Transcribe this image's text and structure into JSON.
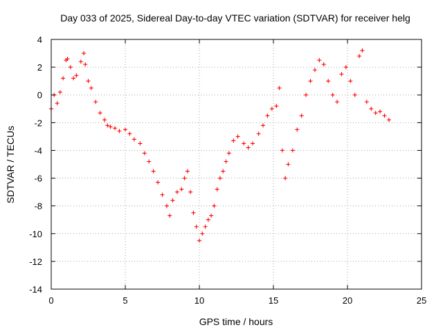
{
  "chart_data": {
    "type": "scatter",
    "title": "Day 033 of 2025, Sidereal Day-to-day VTEC variation (SDTVAR) for receiver helg",
    "xlabel": "GPS time / hours",
    "ylabel": "SDTVAR / TECUs",
    "xlim": [
      0,
      25
    ],
    "ylim": [
      -14,
      4
    ],
    "xticks": [
      0,
      5,
      10,
      15,
      20,
      25
    ],
    "yticks": [
      -14,
      -12,
      -10,
      -8,
      -6,
      -4,
      -2,
      0,
      2,
      4
    ],
    "grid": true,
    "marker": "+",
    "series_color": "#ff0000",
    "series": [
      {
        "name": "SDTVAR",
        "x": [
          0.0,
          0.2,
          0.4,
          0.6,
          0.8,
          1.0,
          1.1,
          1.3,
          1.5,
          1.7,
          2.0,
          2.2,
          2.3,
          2.5,
          2.7,
          3.0,
          3.3,
          3.6,
          3.8,
          4.0,
          4.3,
          4.6,
          5.0,
          5.3,
          5.6,
          6.0,
          6.3,
          6.6,
          6.9,
          7.2,
          7.5,
          7.8,
          8.0,
          8.2,
          8.5,
          8.8,
          9.0,
          9.2,
          9.4,
          9.6,
          9.8,
          10.0,
          10.2,
          10.4,
          10.6,
          10.8,
          11.0,
          11.2,
          11.4,
          11.6,
          11.8,
          12.0,
          12.3,
          12.6,
          13.0,
          13.3,
          13.6,
          14.0,
          14.3,
          14.6,
          14.9,
          15.2,
          15.4,
          15.6,
          15.8,
          16.0,
          16.3,
          16.6,
          16.9,
          17.2,
          17.5,
          17.8,
          18.1,
          18.4,
          18.7,
          19.0,
          19.3,
          19.6,
          19.9,
          20.2,
          20.5,
          20.8,
          21.0,
          21.3,
          21.6,
          21.9,
          22.2,
          22.5,
          22.8
        ],
        "values": [
          -1.0,
          0.0,
          -0.6,
          0.2,
          1.2,
          2.5,
          2.6,
          2.0,
          1.2,
          1.4,
          2.4,
          3.0,
          2.2,
          1.0,
          0.5,
          -0.5,
          -1.3,
          -1.8,
          -2.2,
          -2.3,
          -2.4,
          -2.6,
          -2.5,
          -2.8,
          -3.2,
          -3.5,
          -4.2,
          -4.8,
          -5.5,
          -6.3,
          -7.2,
          -8.0,
          -8.7,
          -7.6,
          -7.0,
          -6.8,
          -6.0,
          -5.5,
          -7.0,
          -8.5,
          -9.5,
          -10.5,
          -10.0,
          -9.5,
          -9.0,
          -8.7,
          -8.0,
          -6.8,
          -6.0,
          -5.5,
          -4.8,
          -4.2,
          -3.3,
          -3.0,
          -3.5,
          -3.8,
          -3.5,
          -2.8,
          -2.2,
          -1.5,
          -1.0,
          -0.8,
          0.5,
          -4.0,
          -6.0,
          -5.0,
          -4.0,
          -2.5,
          -1.5,
          0.0,
          1.0,
          1.8,
          2.5,
          2.2,
          1.0,
          0.0,
          -0.5,
          1.5,
          2.0,
          1.0,
          0.0,
          2.8,
          3.2,
          -0.5,
          -1.0,
          -1.3,
          -1.2,
          -1.5,
          -1.8
        ]
      }
    ]
  }
}
